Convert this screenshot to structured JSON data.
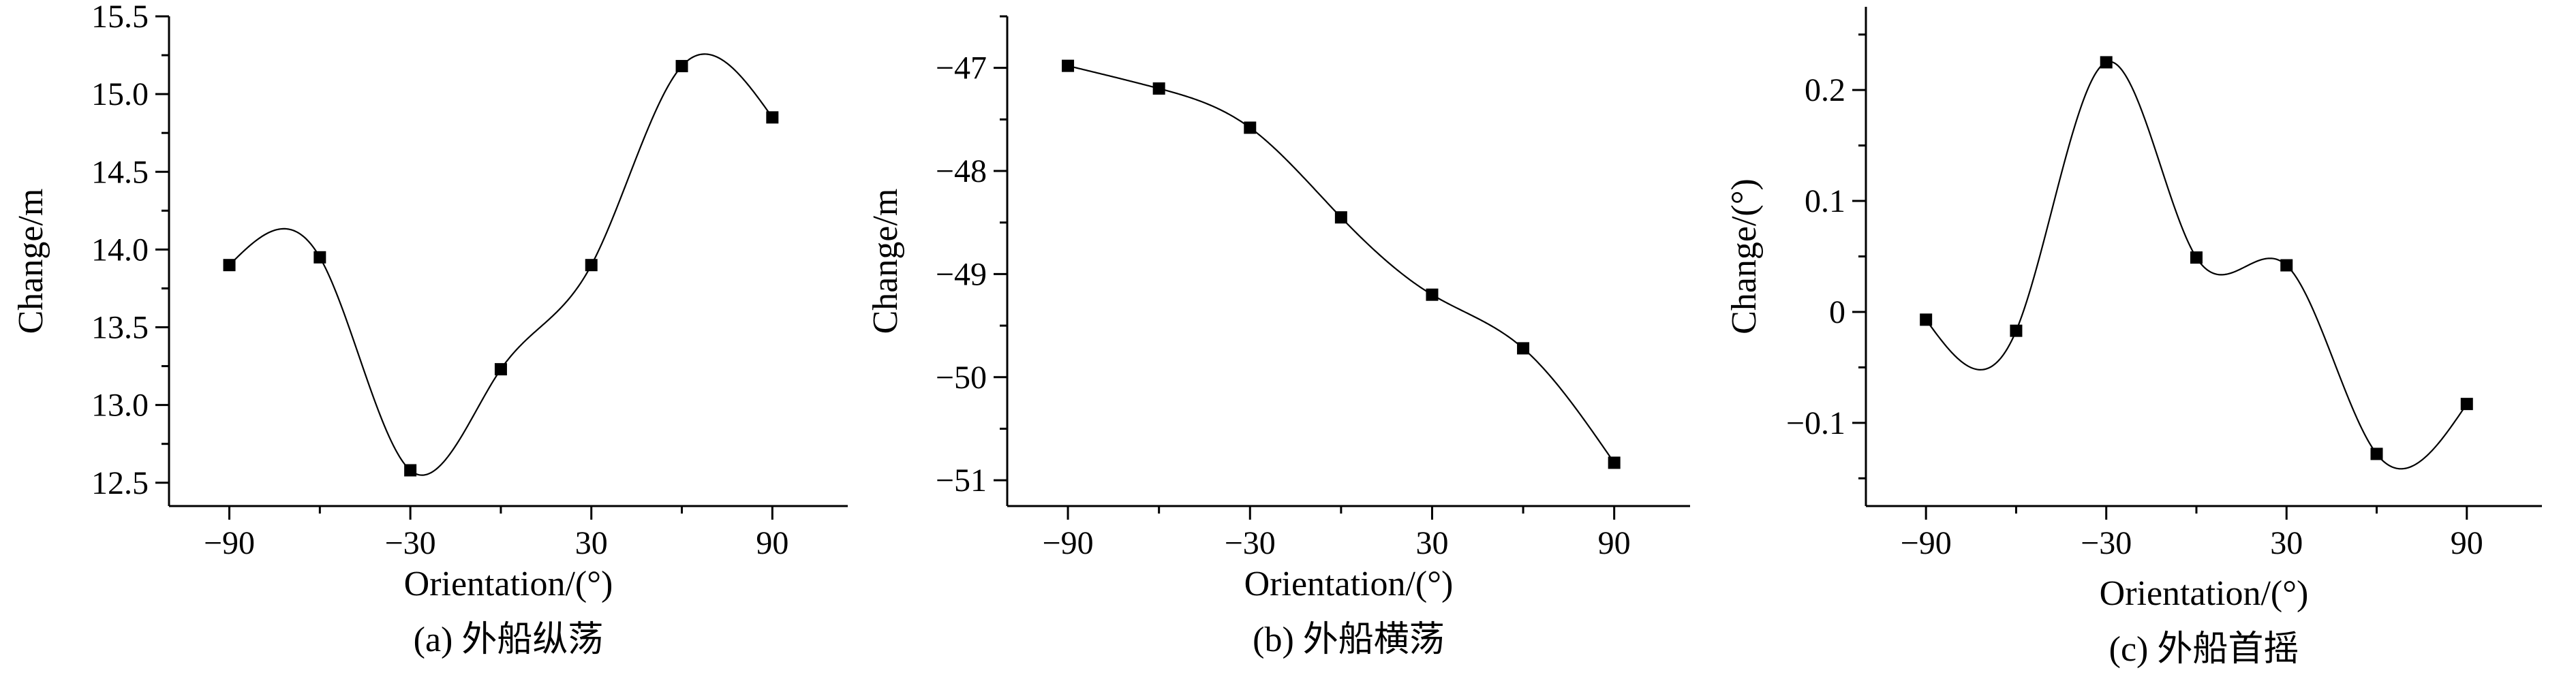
{
  "colors": {
    "line": "#000000",
    "marker": "#000000",
    "background": "#ffffff"
  },
  "chart_data": [
    {
      "type": "line",
      "caption": "(a) 外船纵荡",
      "xlabel": "Orientation/(°)",
      "ylabel": "Change/m",
      "xlim": [
        -110,
        115
      ],
      "ylim": [
        12.35,
        15.5
      ],
      "xticks": [
        -90,
        -30,
        30,
        90
      ],
      "xtick_labels": [
        "−90",
        "−30",
        "30",
        "90"
      ],
      "yticks": [
        12.5,
        13.0,
        13.5,
        14.0,
        14.5,
        15.0,
        15.5
      ],
      "ytick_labels": [
        "12.5",
        "13.0",
        "13.5",
        "14.0",
        "14.5",
        "15.0",
        "15.5"
      ],
      "x": [
        -90,
        -60,
        -30,
        0,
        30,
        60,
        90
      ],
      "y": [
        13.9,
        13.95,
        12.58,
        13.23,
        13.9,
        15.18,
        14.85
      ]
    },
    {
      "type": "line",
      "caption": "(b) 外船横荡",
      "xlabel": "Orientation/(°)",
      "ylabel": "Change/m",
      "xlim": [
        -110,
        115
      ],
      "ylim": [
        -51.25,
        -46.5
      ],
      "xticks": [
        -90,
        -30,
        30,
        90
      ],
      "xtick_labels": [
        "−90",
        "−30",
        "30",
        "90"
      ],
      "yticks": [
        -51,
        -50,
        -49,
        -48,
        -47
      ],
      "ytick_labels": [
        "−51",
        "−50",
        "−49",
        "−48",
        "−47"
      ],
      "x": [
        -90,
        -60,
        -30,
        0,
        30,
        60,
        90
      ],
      "y": [
        -46.98,
        -47.2,
        -47.58,
        -48.45,
        -49.2,
        -49.72,
        -50.83
      ]
    },
    {
      "type": "line",
      "caption": "(c) 外船首摇",
      "xlabel": "Orientation/(°)",
      "ylabel": "Change/(°)",
      "xlim": [
        -110,
        115
      ],
      "ylim": [
        -0.175,
        0.275
      ],
      "xticks": [
        -90,
        -30,
        30,
        90
      ],
      "xtick_labels": [
        "−90",
        "−30",
        "30",
        "90"
      ],
      "yticks": [
        -0.1,
        0,
        0.1,
        0.2
      ],
      "ytick_labels": [
        "−0.1",
        "0",
        "0.1",
        "0.2"
      ],
      "x": [
        -90,
        -60,
        -30,
        0,
        30,
        60,
        90
      ],
      "y": [
        -0.007,
        -0.017,
        0.225,
        0.049,
        0.042,
        -0.128,
        -0.083
      ]
    }
  ]
}
